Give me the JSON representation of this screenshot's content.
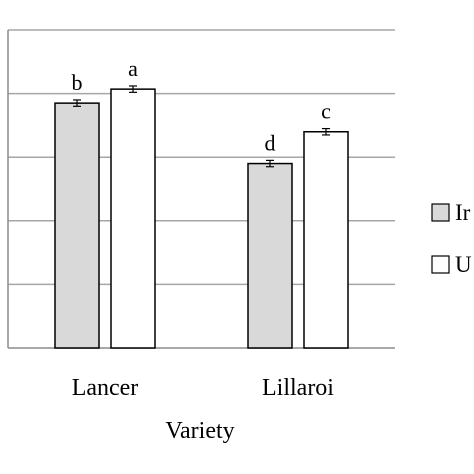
{
  "chart_data": {
    "type": "bar",
    "xlabel": "Variety",
    "ylabel": "",
    "categories": [
      "Lancer",
      "Lillaroi"
    ],
    "series": [
      {
        "name": "Ir",
        "color": "#d9d9d9",
        "values": [
          3.85,
          2.9
        ],
        "errors": [
          0.05,
          0.05
        ],
        "letters": [
          "b",
          "d"
        ]
      },
      {
        "name": "U",
        "color": "#ffffff",
        "values": [
          4.07,
          3.4
        ],
        "errors": [
          0.05,
          0.05
        ],
        "letters": [
          "a",
          "c"
        ]
      }
    ],
    "ylim": [
      0,
      5
    ],
    "yticks": [
      0,
      1,
      2,
      3,
      4,
      5
    ],
    "grid": true,
    "legend_position": "right"
  }
}
